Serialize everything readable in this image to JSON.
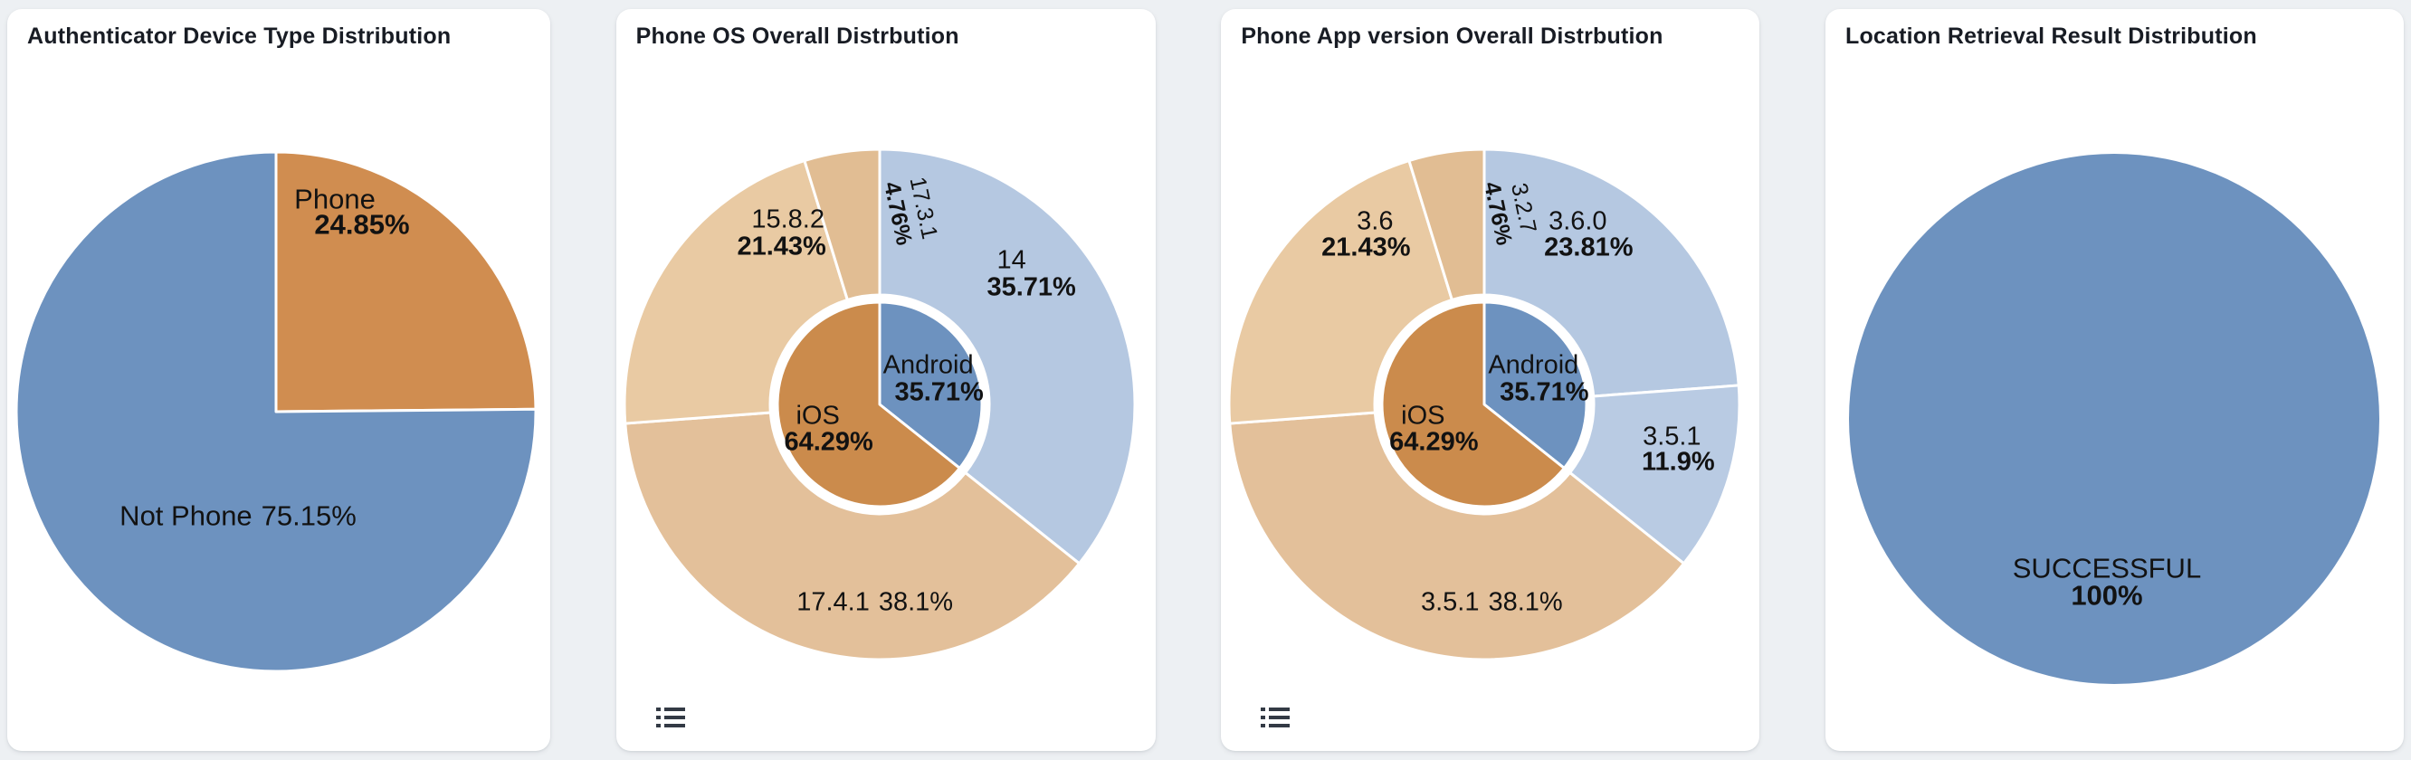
{
  "page": {
    "background_color": "#edf0f3",
    "card_background": "#ffffff"
  },
  "colors": {
    "blue": "#6d92bf",
    "light_blue": "#b5c8e1",
    "orange": "#d08d50",
    "inner_orange": "#cb8b4c",
    "tan": "#e3c09a",
    "label_text": "#121212",
    "title_text": "#181c24",
    "toolbox_icon": "#333a45"
  },
  "cards": [
    {
      "title": "Authenticator Device Type Distribution",
      "toolbox_icon": null
    },
    {
      "title": "Phone OS Overall Distrbution",
      "toolbox_icon": "data-view-list-icon"
    },
    {
      "title": "Phone App version Overall Distrbution",
      "toolbox_icon": "data-view-list-icon"
    },
    {
      "title": "Location Retrieval Result Distribution",
      "toolbox_icon": null
    }
  ],
  "chart_data": [
    {
      "type": "pie",
      "title": "Authenticator Device Type Distribution",
      "start_angle": "12-oclock",
      "direction": "clockwise",
      "legend": "none",
      "slices": [
        {
          "label": "Phone",
          "value": 24.85,
          "pct_label": "24.85%",
          "color": "#d08d50"
        },
        {
          "label": "Not Phone",
          "value": 75.15,
          "pct_label": "75.15%",
          "color": "#6d92bf"
        }
      ]
    },
    {
      "type": "sunburst",
      "title": "Phone OS Overall Distrbution",
      "start_angle": "12-oclock",
      "direction": "clockwise",
      "legend": "none",
      "inner": [
        {
          "label": "Android",
          "value": 35.71,
          "pct_label": "35.71%",
          "color": "#6d92bf"
        },
        {
          "label": "iOS",
          "value": 64.29,
          "pct_label": "64.29%",
          "color": "#cb8b4c"
        }
      ],
      "outer": [
        {
          "label": "14",
          "parent": "Android",
          "value": 35.71,
          "pct_label": "35.71%",
          "color": "#b5c8e1"
        },
        {
          "label": "17.4.1",
          "parent": "iOS",
          "value": 38.1,
          "pct_label": "38.1%",
          "color": "#e3c09a"
        },
        {
          "label": "15.8.2",
          "parent": "iOS",
          "value": 21.43,
          "pct_label": "21.43%",
          "color": "#e9caa3"
        },
        {
          "label": "17.3.1",
          "parent": "iOS",
          "value": 4.76,
          "pct_label": "4.76%",
          "color": "#e1bd93"
        }
      ]
    },
    {
      "type": "sunburst",
      "title": "Phone App version Overall Distrbution",
      "start_angle": "12-oclock",
      "direction": "clockwise",
      "legend": "none",
      "inner": [
        {
          "label": "Android",
          "value": 35.71,
          "pct_label": "35.71%",
          "color": "#6d92bf"
        },
        {
          "label": "iOS",
          "value": 64.29,
          "pct_label": "64.29%",
          "color": "#cb8b4c"
        }
      ],
      "outer": [
        {
          "label": "3.6.0",
          "parent": "Android",
          "value": 23.81,
          "pct_label": "23.81%",
          "color": "#b5c8e1"
        },
        {
          "label": "3.5.1",
          "parent": "Android",
          "value": 11.9,
          "pct_label": "11.9%",
          "color": "#b9cbe3"
        },
        {
          "label": "3.5.1",
          "parent": "iOS",
          "value": 38.1,
          "pct_label": "38.1%",
          "color": "#e3c09a"
        },
        {
          "label": "3.6",
          "parent": "iOS",
          "value": 21.43,
          "pct_label": "21.43%",
          "color": "#e9caa3"
        },
        {
          "label": "3.2.7",
          "parent": "iOS",
          "value": 4.76,
          "pct_label": "4.76%",
          "color": "#e1bd93"
        }
      ]
    },
    {
      "type": "pie",
      "title": "Location Retrieval Result Distribution",
      "start_angle": "12-oclock",
      "direction": "clockwise",
      "legend": "none",
      "slices": [
        {
          "label": "SUCCESSFUL",
          "value": 100,
          "pct_label": "100%",
          "color": "#6d92bf"
        }
      ]
    }
  ]
}
